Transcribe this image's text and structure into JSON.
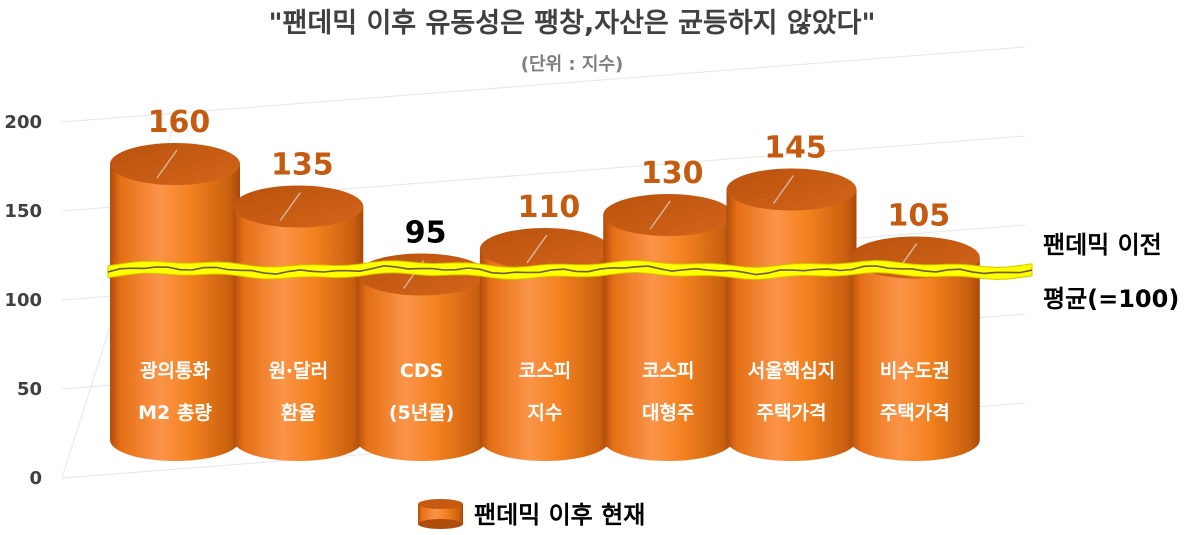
{
  "chart_data": {
    "type": "bar",
    "title": "\"팬데믹 이후 유동성은 팽창,자산은 균등하지 않았다\"",
    "subtitle": "(단위 : 지수)",
    "categories": [
      [
        "광의통화",
        "M2 총량"
      ],
      [
        "원·달러",
        "환율"
      ],
      [
        "CDS",
        "(5년물)"
      ],
      [
        "코스피",
        "지수"
      ],
      [
        "코스피",
        "대형주"
      ],
      [
        "서울핵심지",
        "주택가격"
      ],
      [
        "비수도권",
        "주택가격"
      ]
    ],
    "series": [
      {
        "name": "팬데믹 이후 현재",
        "values": [
          160,
          135,
          95,
          110,
          130,
          145,
          105
        ]
      }
    ],
    "value_labels": [
      "160",
      "135",
      "95",
      "110",
      "130",
      "145",
      "105"
    ],
    "value_label_colors": [
      "#c55a11",
      "#c55a11",
      "#000000",
      "#c55a11",
      "#c55a11",
      "#c55a11",
      "#c55a11"
    ],
    "y_ticks": [
      "0",
      "50",
      "100",
      "150",
      "200"
    ],
    "ylim": [
      0,
      200
    ],
    "reference_line": {
      "value": 100,
      "label_line1": "팬데믹 이전",
      "label_line2": "평균(=100)",
      "color": "#ffff00"
    },
    "legend": {
      "position": "bottom",
      "label": "팬데믹 이후 현재"
    },
    "colors": {
      "bar_body": "#f4811f",
      "bar_top": "#c55a11",
      "bar_dark": "#a9480b",
      "value_label": "#c55a11"
    },
    "grid": true
  }
}
